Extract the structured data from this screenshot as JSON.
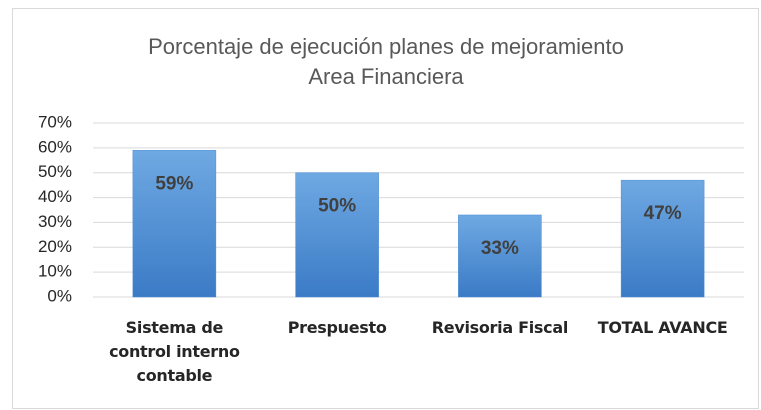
{
  "chart_data": {
    "type": "bar",
    "title": [
      "Porcentaje de ejecución planes de mejoramiento",
      "Area Financiera"
    ],
    "categories": [
      "Sistema de control interno contable",
      "Prespuesto",
      "Revisoria Fiscal",
      "TOTAL AVANCE"
    ],
    "values": [
      59,
      50,
      33,
      47
    ],
    "value_labels": [
      "59%",
      "50%",
      "33%",
      "47%"
    ],
    "color": "#4a8bd4",
    "ylim": [
      0,
      70
    ],
    "yticks": [
      {
        "value": 0,
        "label": "0%"
      },
      {
        "value": 10,
        "label": "10%"
      },
      {
        "value": 20,
        "label": "20%"
      },
      {
        "value": 30,
        "label": "30%"
      },
      {
        "value": 40,
        "label": "40%"
      },
      {
        "value": 50,
        "label": "50%"
      },
      {
        "value": 60,
        "label": "60%"
      },
      {
        "value": 70,
        "label": "70%"
      }
    ],
    "grid": true
  }
}
